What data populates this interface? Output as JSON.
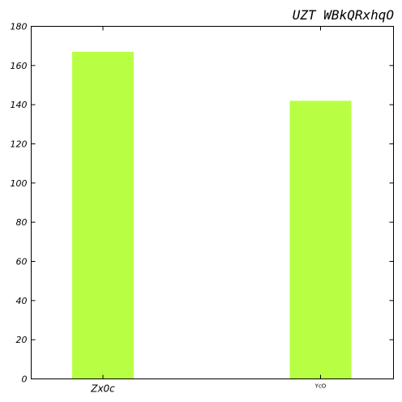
{
  "chart_data": {
    "type": "bar",
    "title": "UZT WBkQRxhqO",
    "categories": [
      "Zx0c",
      "YcO"
    ],
    "values": [
      167,
      142
    ],
    "xlabel": "",
    "ylabel": "",
    "ylim": [
      0,
      180
    ],
    "yticks": [
      0,
      20,
      40,
      60,
      80,
      100,
      120,
      140,
      160,
      180
    ],
    "bar_color": "#b8ff44",
    "grid": false,
    "legend": "none"
  }
}
